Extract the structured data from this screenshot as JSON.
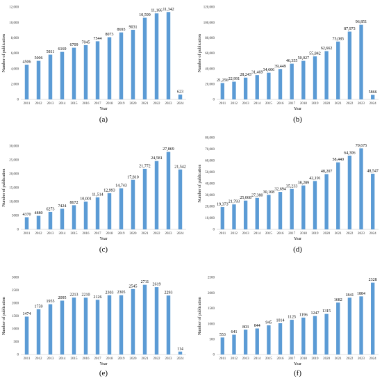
{
  "chart_data": [
    {
      "type": "bar",
      "panel_label": "(a)",
      "categories": [
        "2011",
        "2012",
        "2013",
        "2014",
        "2015",
        "2016",
        "2017",
        "2018",
        "2019",
        "2020",
        "2021",
        "2022",
        "2023",
        "2024"
      ],
      "values": [
        4506,
        5006,
        5811,
        6169,
        6709,
        7045,
        7544,
        8073,
        8693,
        9031,
        10599,
        11166,
        11342,
        623
      ],
      "data_labels": [
        "4506",
        "5006",
        "5811",
        "6169",
        "6709",
        "7045",
        "7544",
        "8073",
        "8693",
        "9031",
        "10,599",
        "11,166",
        "11,342",
        "623"
      ],
      "ylim": [
        0,
        12000
      ],
      "yticks": [
        "0",
        "2,000",
        "4,000",
        "6,000",
        "8,000",
        "10,000",
        "12,000"
      ],
      "xlabel": "Year",
      "ylabel": "Number of publication",
      "color": "#5B9BD5"
    },
    {
      "type": "bar",
      "panel_label": "(b)",
      "categories": [
        "2011",
        "2012",
        "2013",
        "2014",
        "2015",
        "2016",
        "2017",
        "2018",
        "2019",
        "2020",
        "2021",
        "2022",
        "2023",
        "2024"
      ],
      "values": [
        21256,
        22991,
        28243,
        31469,
        34606,
        39449,
        46355,
        50027,
        55842,
        62662,
        75085,
        87973,
        96851,
        5866
      ],
      "data_labels": [
        "21,256",
        "22,991",
        "28,243",
        "31,469",
        "34,606",
        "39,449",
        "46,355",
        "50,027",
        "55,842",
        "62,662",
        "75,085",
        "87,973",
        "96,851",
        "5866"
      ],
      "ylim": [
        0,
        120000
      ],
      "yticks": [
        "0",
        "20,000",
        "40,000",
        "60,000",
        "80,000",
        "100,000",
        "120,000"
      ],
      "xlabel": "Year",
      "ylabel": "Number of publication",
      "color": "#5B9BD5"
    },
    {
      "type": "bar",
      "panel_label": "(c)",
      "categories": [
        "2011",
        "2012",
        "2013",
        "2014",
        "2015",
        "2016",
        "2017",
        "2018",
        "2019",
        "2020",
        "2021",
        "2022",
        "2023",
        "2024"
      ],
      "values": [
        4370,
        4880,
        6273,
        7424,
        8672,
        10001,
        11514,
        12993,
        14743,
        17810,
        21772,
        24581,
        27869,
        21542
      ],
      "data_labels": [
        "4370",
        "4880",
        "6273",
        "7424",
        "8672",
        "10,001",
        "11,514",
        "12,993",
        "14,743",
        "17,810",
        "21,772",
        "24,581",
        "27,869",
        "21,542"
      ],
      "ylim": [
        0,
        30000
      ],
      "yticks": [
        "0",
        "5000",
        "10,000",
        "15,000",
        "20,000",
        "25,000",
        "30,000"
      ],
      "xlabel": "Year",
      "ylabel": "Number of publication",
      "color": "#5B9BD5"
    },
    {
      "type": "bar",
      "panel_label": "(d)",
      "categories": [
        "2011",
        "2012",
        "2013",
        "2014",
        "2015",
        "2016",
        "2017",
        "2018",
        "2019",
        "2020",
        "2021",
        "2022",
        "2023",
        "2024"
      ],
      "values": [
        19373,
        21793,
        25068,
        27380,
        30108,
        32694,
        35233,
        38289,
        42191,
        48207,
        58440,
        64306,
        70675,
        48547
      ],
      "data_labels": [
        "19,373",
        "21,793",
        "25,068",
        "27,380",
        "30,108",
        "32,694",
        "35,233",
        "38,289",
        "42,191",
        "48,207",
        "58,440",
        "64,306",
        "70,675",
        "48,547"
      ],
      "ylim": [
        0,
        80000
      ],
      "yticks": [
        "0",
        "10,000",
        "20,000",
        "30,000",
        "40,000",
        "50,000",
        "60,000",
        "70,000",
        "80,000"
      ],
      "xlabel": "Year",
      "ylabel": "Number of publication",
      "color": "#5B9BD5"
    },
    {
      "type": "bar",
      "panel_label": "(e)",
      "categories": [
        "2011",
        "2012",
        "2013",
        "2014",
        "2015",
        "2016",
        "2017",
        "2018",
        "2019",
        "2020",
        "2021",
        "2022",
        "2023",
        "2024"
      ],
      "values": [
        1474,
        1759,
        1955,
        2095,
        2213,
        2210,
        2126,
        2303,
        2305,
        2545,
        2711,
        2619,
        2293,
        114
      ],
      "data_labels": [
        "1474",
        "1759",
        "1955",
        "2095",
        "2213",
        "2210",
        "2126",
        "2303",
        "2305",
        "2545",
        "2711",
        "2619",
        "2293",
        "114"
      ],
      "ylim": [
        0,
        3000
      ],
      "yticks": [
        "0",
        "500",
        "1000",
        "1500",
        "2000",
        "2500",
        "3000"
      ],
      "xlabel": "Year",
      "ylabel": "Number of publication",
      "color": "#5B9BD5"
    },
    {
      "type": "bar",
      "panel_label": "(f)",
      "categories": [
        "2011",
        "2012",
        "2013",
        "2014",
        "2015",
        "2016",
        "2017",
        "2018",
        "2019",
        "2020",
        "2021",
        "2022",
        "2023",
        "2024"
      ],
      "values": [
        553,
        641,
        803,
        844,
        945,
        1014,
        1125,
        1196,
        1247,
        1315,
        1682,
        1841,
        1884,
        2328
      ],
      "data_labels": [
        "553",
        "641",
        "803",
        "844",
        "945",
        "1014",
        "1125",
        "1196",
        "1247",
        "1315",
        "1682",
        "1841",
        "1884",
        "2328"
      ],
      "ylim": [
        0,
        2500
      ],
      "yticks": [
        "0",
        "500",
        "1000",
        "1500",
        "2000",
        "2500"
      ],
      "xlabel": "Year",
      "ylabel": "Number of publication",
      "color": "#5B9BD5"
    }
  ]
}
